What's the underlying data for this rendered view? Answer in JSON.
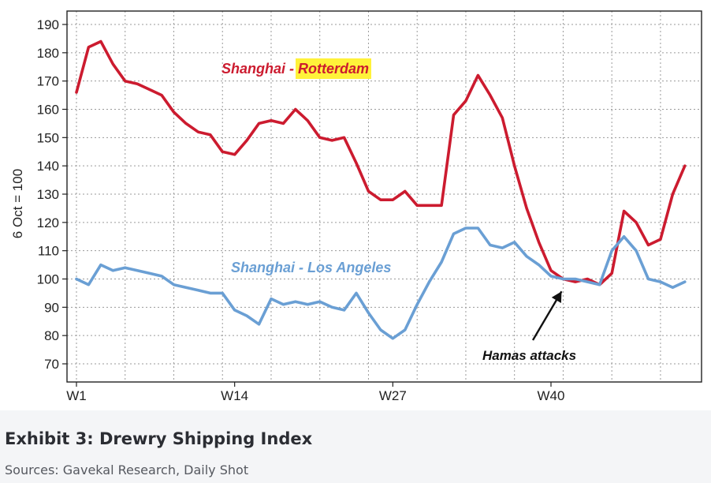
{
  "caption": {
    "title": "Exhibit 3: Drewry Shipping Index",
    "sources": "Sources: Gavekal Research, Daily Shot"
  },
  "chart_data": {
    "type": "line",
    "ylabel": "6 Oct = 100",
    "ylim": [
      70,
      190
    ],
    "y_ticks": [
      70,
      80,
      90,
      100,
      110,
      120,
      130,
      140,
      150,
      160,
      170,
      180,
      190
    ],
    "xlim": [
      1,
      52
    ],
    "x_ticks": [
      {
        "x": 1,
        "label": "W1"
      },
      {
        "x": 14,
        "label": "W14"
      },
      {
        "x": 27,
        "label": "W27"
      },
      {
        "x": 40,
        "label": "W40"
      }
    ],
    "grid": true,
    "series": [
      {
        "name_parts": [
          "Shanghai",
          " - ",
          "Rotterdam"
        ],
        "color": "#cc1b2f",
        "highlight": "#fff23a",
        "x": [
          1,
          2,
          3,
          4,
          5,
          6,
          7,
          8,
          9,
          10,
          11,
          12,
          13,
          14,
          15,
          16,
          17,
          18,
          19,
          20,
          21,
          22,
          23,
          24,
          25,
          26,
          27,
          28,
          29,
          30,
          31,
          32,
          33,
          34,
          35,
          36,
          37,
          38,
          39,
          40,
          41,
          42,
          43,
          44,
          45,
          46,
          47,
          48,
          49,
          50,
          51,
          52
        ],
        "values": [
          166,
          182,
          184,
          176,
          170,
          169,
          167,
          165,
          159,
          155,
          152,
          151,
          145,
          144,
          149,
          155,
          156,
          155,
          160,
          156,
          150,
          149,
          150,
          141,
          131,
          128,
          128,
          131,
          126,
          126,
          126,
          158,
          163,
          172,
          165,
          157,
          140,
          125,
          113,
          103,
          100,
          99,
          100,
          98,
          102,
          124,
          120,
          112,
          114,
          130,
          140,
          null
        ]
      },
      {
        "name_parts": [
          "Shanghai - Los Angeles"
        ],
        "color": "#6a9fd4",
        "x": [
          1,
          2,
          3,
          4,
          5,
          6,
          7,
          8,
          9,
          10,
          11,
          12,
          13,
          14,
          15,
          16,
          17,
          18,
          19,
          20,
          21,
          22,
          23,
          24,
          25,
          26,
          27,
          28,
          29,
          30,
          31,
          32,
          33,
          34,
          35,
          36,
          37,
          38,
          39,
          40,
          41,
          42,
          43,
          44,
          45,
          46,
          47,
          48,
          49,
          50,
          51,
          52
        ],
        "values": [
          100,
          98,
          105,
          103,
          104,
          103,
          102,
          101,
          98,
          97,
          96,
          95,
          95,
          89,
          87,
          84,
          93,
          91,
          92,
          91,
          92,
          90,
          89,
          95,
          88,
          82,
          79,
          82,
          91,
          99,
          106,
          116,
          118,
          118,
          112,
          111,
          113,
          108,
          105,
          101,
          100,
          100,
          99,
          98,
          110,
          115,
          110,
          100,
          99,
          97,
          99,
          null
        ]
      }
    ],
    "annotations": [
      {
        "text": "Hamas attacks",
        "arrow_to": {
          "x": 41,
          "y": 97
        }
      }
    ]
  }
}
